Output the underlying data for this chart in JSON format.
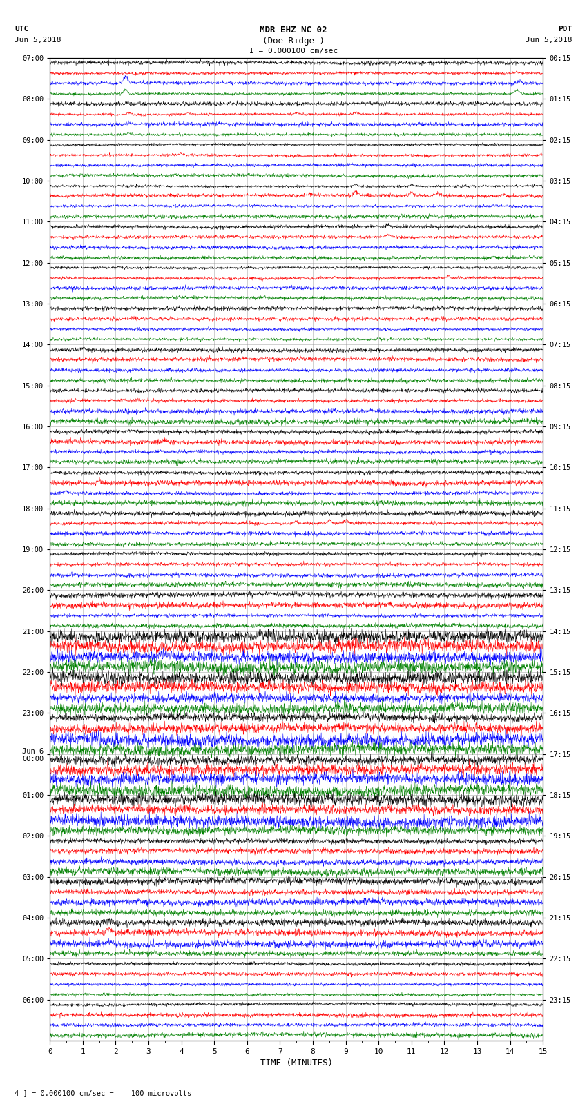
{
  "title_line1": "MDR EHZ NC 02",
  "title_line2": "(Doe Ridge )",
  "scale_text": "I = 0.000100 cm/sec",
  "footer_text": "4 ] = 0.000100 cm/sec =    100 microvolts",
  "utc_label": "UTC",
  "utc_date": "Jun 5,2018",
  "pdt_label": "PDT",
  "pdt_date": "Jun 5,2018",
  "xlabel": "TIME (MINUTES)",
  "left_times": [
    "07:00",
    "08:00",
    "09:00",
    "10:00",
    "11:00",
    "12:00",
    "13:00",
    "14:00",
    "15:00",
    "16:00",
    "17:00",
    "18:00",
    "19:00",
    "20:00",
    "21:00",
    "22:00",
    "23:00",
    "Jun 6\n00:00",
    "01:00",
    "02:00",
    "03:00",
    "04:00",
    "05:00",
    "06:00"
  ],
  "right_times": [
    "00:15",
    "01:15",
    "02:15",
    "03:15",
    "04:15",
    "05:15",
    "06:15",
    "07:15",
    "08:15",
    "09:15",
    "10:15",
    "11:15",
    "12:15",
    "13:15",
    "14:15",
    "15:15",
    "16:15",
    "17:15",
    "18:15",
    "19:15",
    "20:15",
    "21:15",
    "22:15",
    "23:15"
  ],
  "n_rows": 96,
  "xmin": 0,
  "xmax": 15,
  "colors": [
    "black",
    "red",
    "blue",
    "green"
  ],
  "background_color": "white",
  "grid_color": "#888888",
  "fig_width": 8.5,
  "fig_height": 16.13,
  "dpi": 100
}
